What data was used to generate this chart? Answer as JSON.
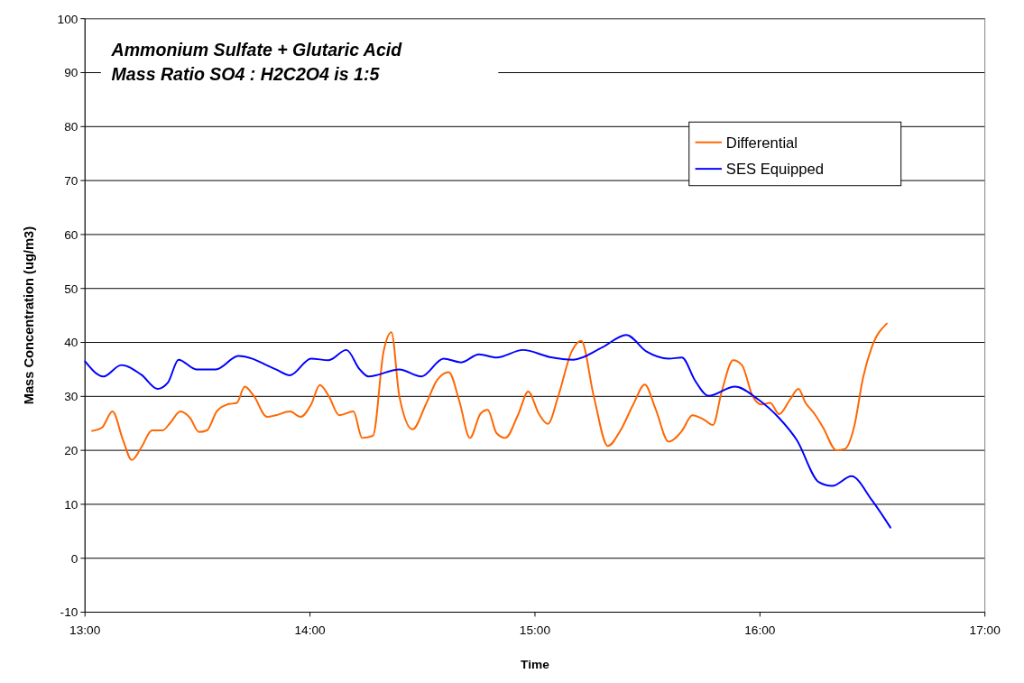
{
  "chart_data": {
    "type": "line",
    "title": "Ammonium Sulfate + Glutaric Acid\nMass Ratio SO4 : H2C2O4 is 1:5",
    "xlabel": "Time",
    "ylabel": "Mass Concentration (ug/m3)",
    "xlim": [
      13,
      17
    ],
    "xticks": [
      {
        "value": 13,
        "label": "13:00"
      },
      {
        "value": 14,
        "label": "14:00"
      },
      {
        "value": 15,
        "label": "15:00"
      },
      {
        "value": 16,
        "label": "16:00"
      },
      {
        "value": 17,
        "label": "17:00"
      }
    ],
    "ylim": [
      -10,
      100
    ],
    "yticks": [
      -10,
      0,
      10,
      20,
      30,
      40,
      50,
      60,
      70,
      80,
      90,
      100
    ],
    "grid": "y",
    "legend": "top right",
    "marker": "none",
    "line_style": "solid",
    "series": [
      {
        "name": "Differential",
        "color": "#ff6600",
        "x": [
          13.031,
          13.075,
          13.122,
          13.169,
          13.208,
          13.251,
          13.298,
          13.345,
          13.377,
          13.424,
          13.467,
          13.506,
          13.542,
          13.585,
          13.632,
          13.675,
          13.71,
          13.75,
          13.809,
          13.848,
          13.911,
          13.958,
          14.005,
          14.044,
          14.083,
          14.13,
          14.193,
          14.232,
          14.28,
          14.327,
          14.362,
          14.397,
          14.456,
          14.515,
          14.566,
          14.617,
          14.664,
          14.711,
          14.758,
          14.79,
          14.829,
          14.868,
          14.927,
          14.97,
          15.017,
          15.057,
          15.104,
          15.163,
          15.206,
          15.261,
          15.324,
          15.379,
          15.437,
          15.488,
          15.536,
          15.594,
          15.653,
          15.7,
          15.751,
          15.791,
          15.83,
          15.881,
          15.92,
          15.967,
          16.007,
          16.046,
          16.085,
          16.132,
          16.171,
          16.203,
          16.242,
          16.281,
          16.34,
          16.379,
          16.419,
          16.458,
          16.497,
          16.564
        ],
        "values": [
          23.6,
          24.2,
          27.2,
          21.9,
          18.2,
          20.6,
          23.7,
          23.7,
          25.0,
          27.2,
          26.0,
          23.4,
          23.7,
          27.2,
          28.5,
          28.8,
          31.8,
          30.1,
          26.2,
          26.5,
          27.2,
          26.2,
          28.5,
          32.1,
          30.1,
          26.5,
          27.2,
          22.3,
          22.7,
          38.3,
          41.9,
          30.1,
          23.9,
          28.5,
          33.1,
          34.5,
          29.1,
          22.3,
          26.8,
          27.5,
          23.2,
          22.3,
          26.8,
          30.9,
          26.8,
          24.9,
          30.1,
          38.3,
          40.3,
          30.1,
          20.8,
          23.6,
          28.5,
          32.2,
          27.7,
          21.6,
          23.6,
          26.5,
          25.7,
          24.7,
          30.9,
          36.7,
          35.8,
          30.1,
          28.5,
          28.8,
          26.7,
          29.3,
          31.4,
          28.8,
          26.8,
          24.2,
          20.0,
          20.3,
          24.4,
          33.4,
          39.1,
          43.5
        ]
      },
      {
        "name": "SES Equipped",
        "color": "#0000ff",
        "x": [
          13.0,
          13.082,
          13.161,
          13.251,
          13.322,
          13.369,
          13.416,
          13.495,
          13.581,
          13.683,
          13.848,
          13.911,
          14.005,
          14.083,
          14.162,
          14.221,
          14.26,
          14.397,
          14.495,
          14.594,
          14.672,
          14.751,
          14.829,
          14.947,
          15.065,
          15.171,
          15.3,
          15.406,
          15.496,
          15.594,
          15.653,
          15.712,
          15.771,
          15.889,
          15.987,
          16.085,
          16.164,
          16.262,
          16.321,
          16.407,
          16.497,
          16.58
        ],
        "values": [
          36.5,
          33.7,
          35.8,
          34.0,
          31.4,
          32.6,
          36.8,
          35.0,
          35.0,
          37.5,
          35.0,
          33.9,
          37.0,
          36.7,
          38.6,
          35.0,
          33.7,
          35.0,
          33.7,
          37.0,
          36.3,
          37.8,
          37.2,
          38.6,
          37.3,
          36.8,
          39.1,
          41.4,
          38.3,
          37.0,
          37.2,
          32.9,
          30.1,
          31.8,
          29.6,
          26.0,
          21.9,
          14.1,
          13.4,
          15.2,
          10.8,
          5.7
        ]
      }
    ]
  }
}
